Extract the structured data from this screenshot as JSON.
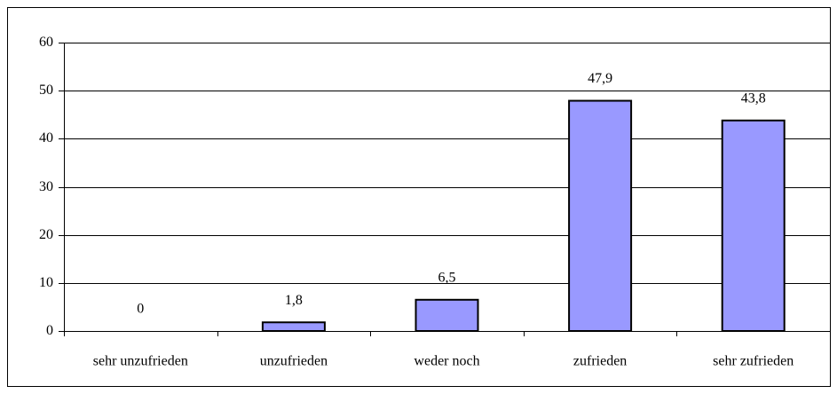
{
  "chart_data": {
    "type": "bar",
    "categories": [
      "sehr unzufrieden",
      "unzufrieden",
      "weder noch",
      "zufrieden",
      "sehr zufrieden"
    ],
    "values": [
      0,
      1.8,
      6.5,
      47.9,
      43.8
    ],
    "value_labels": [
      "0",
      "1,8",
      "6,5",
      "47,9",
      "43,8"
    ],
    "color": "#9999ff",
    "ylim": [
      0,
      60
    ],
    "yticks": [
      0,
      10,
      20,
      30,
      40,
      50,
      60
    ],
    "grid": true
  }
}
